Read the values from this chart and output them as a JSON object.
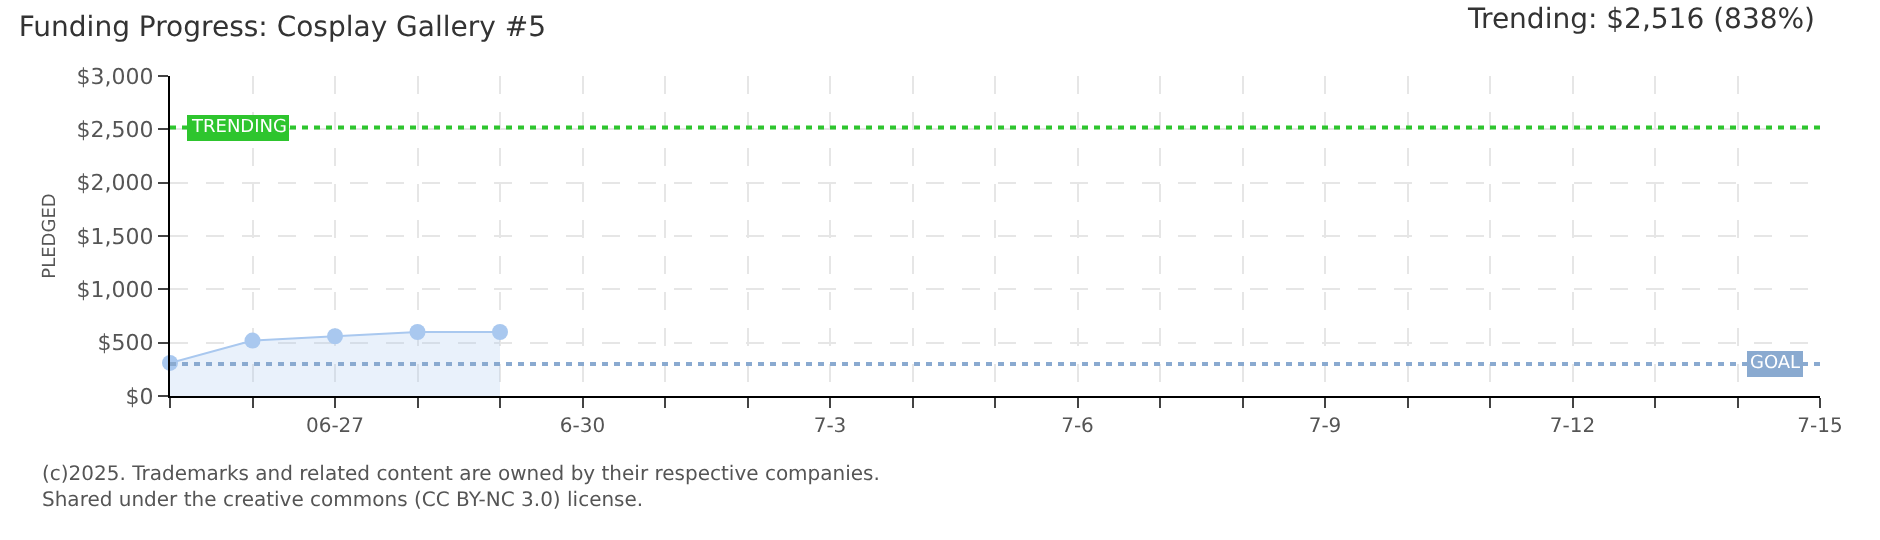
{
  "chart_data": {
    "type": "area",
    "title": "Funding Progress: Cosplay Gallery #5",
    "subtitle": "Trending: $2,516 (838%)",
    "ylabel": "PLEDGED",
    "x": [
      "--06-25",
      "--06-26",
      "--06-27",
      "--06-28",
      "--06-29"
    ],
    "series": [
      {
        "color": "#a9c8ef",
        "values": [
          310,
          520,
          560,
          600,
          600
        ]
      }
    ],
    "xlim": [
      "--06-25",
      "--07-15"
    ],
    "xticks": [
      {
        "value": "--06-25",
        "label": null
      },
      {
        "value": "--06-26",
        "label": null
      },
      {
        "value": "--06-27",
        "label": "06-27"
      },
      {
        "value": "--06-28",
        "label": null
      },
      {
        "value": "--06-29",
        "label": null
      },
      {
        "value": "--06-30",
        "label": "6-30"
      },
      {
        "value": "--07-01",
        "label": null
      },
      {
        "value": "--07-02",
        "label": null
      },
      {
        "value": "--07-03",
        "label": "7-3"
      },
      {
        "value": "--07-04",
        "label": null
      },
      {
        "value": "--07-05",
        "label": null
      },
      {
        "value": "--07-06",
        "label": "7-6"
      },
      {
        "value": "--07-07",
        "label": null
      },
      {
        "value": "--07-08",
        "label": null
      },
      {
        "value": "--07-09",
        "label": "7-9"
      },
      {
        "value": "--07-10",
        "label": null
      },
      {
        "value": "--07-11",
        "label": null
      },
      {
        "value": "--07-12",
        "label": "7-12"
      },
      {
        "value": "--07-13",
        "label": null
      },
      {
        "value": "--07-14",
        "label": null
      },
      {
        "value": "--07-15",
        "label": "7-15"
      }
    ],
    "ylim": [
      0,
      3000
    ],
    "yticks": [
      {
        "value": 0,
        "label": "$0"
      },
      {
        "value": 500,
        "label": "$500"
      },
      {
        "value": 1000,
        "label": "$1,000"
      },
      {
        "value": 1500,
        "label": "$1,500"
      },
      {
        "value": 2000,
        "label": "$2,000"
      },
      {
        "value": 2500,
        "label": "$2,500"
      },
      {
        "value": 3000,
        "label": "$3,000"
      }
    ],
    "ref_lines": [
      {
        "axis": "y",
        "value": 2516,
        "label": "TRENDING",
        "color": "#2ec52e",
        "line_style": "dotted"
      },
      {
        "axis": "y",
        "value": 300,
        "label": "GOAL",
        "color": "#8aaad0",
        "line_style": "dotted"
      }
    ],
    "annotations": [
      "(c)2025. Trademarks and related content are owned by their respective companies.",
      "Shared under the creative commons (CC BY-NC 3.0) license."
    ],
    "grid": true,
    "marker": "circle",
    "line_style": "solid"
  }
}
